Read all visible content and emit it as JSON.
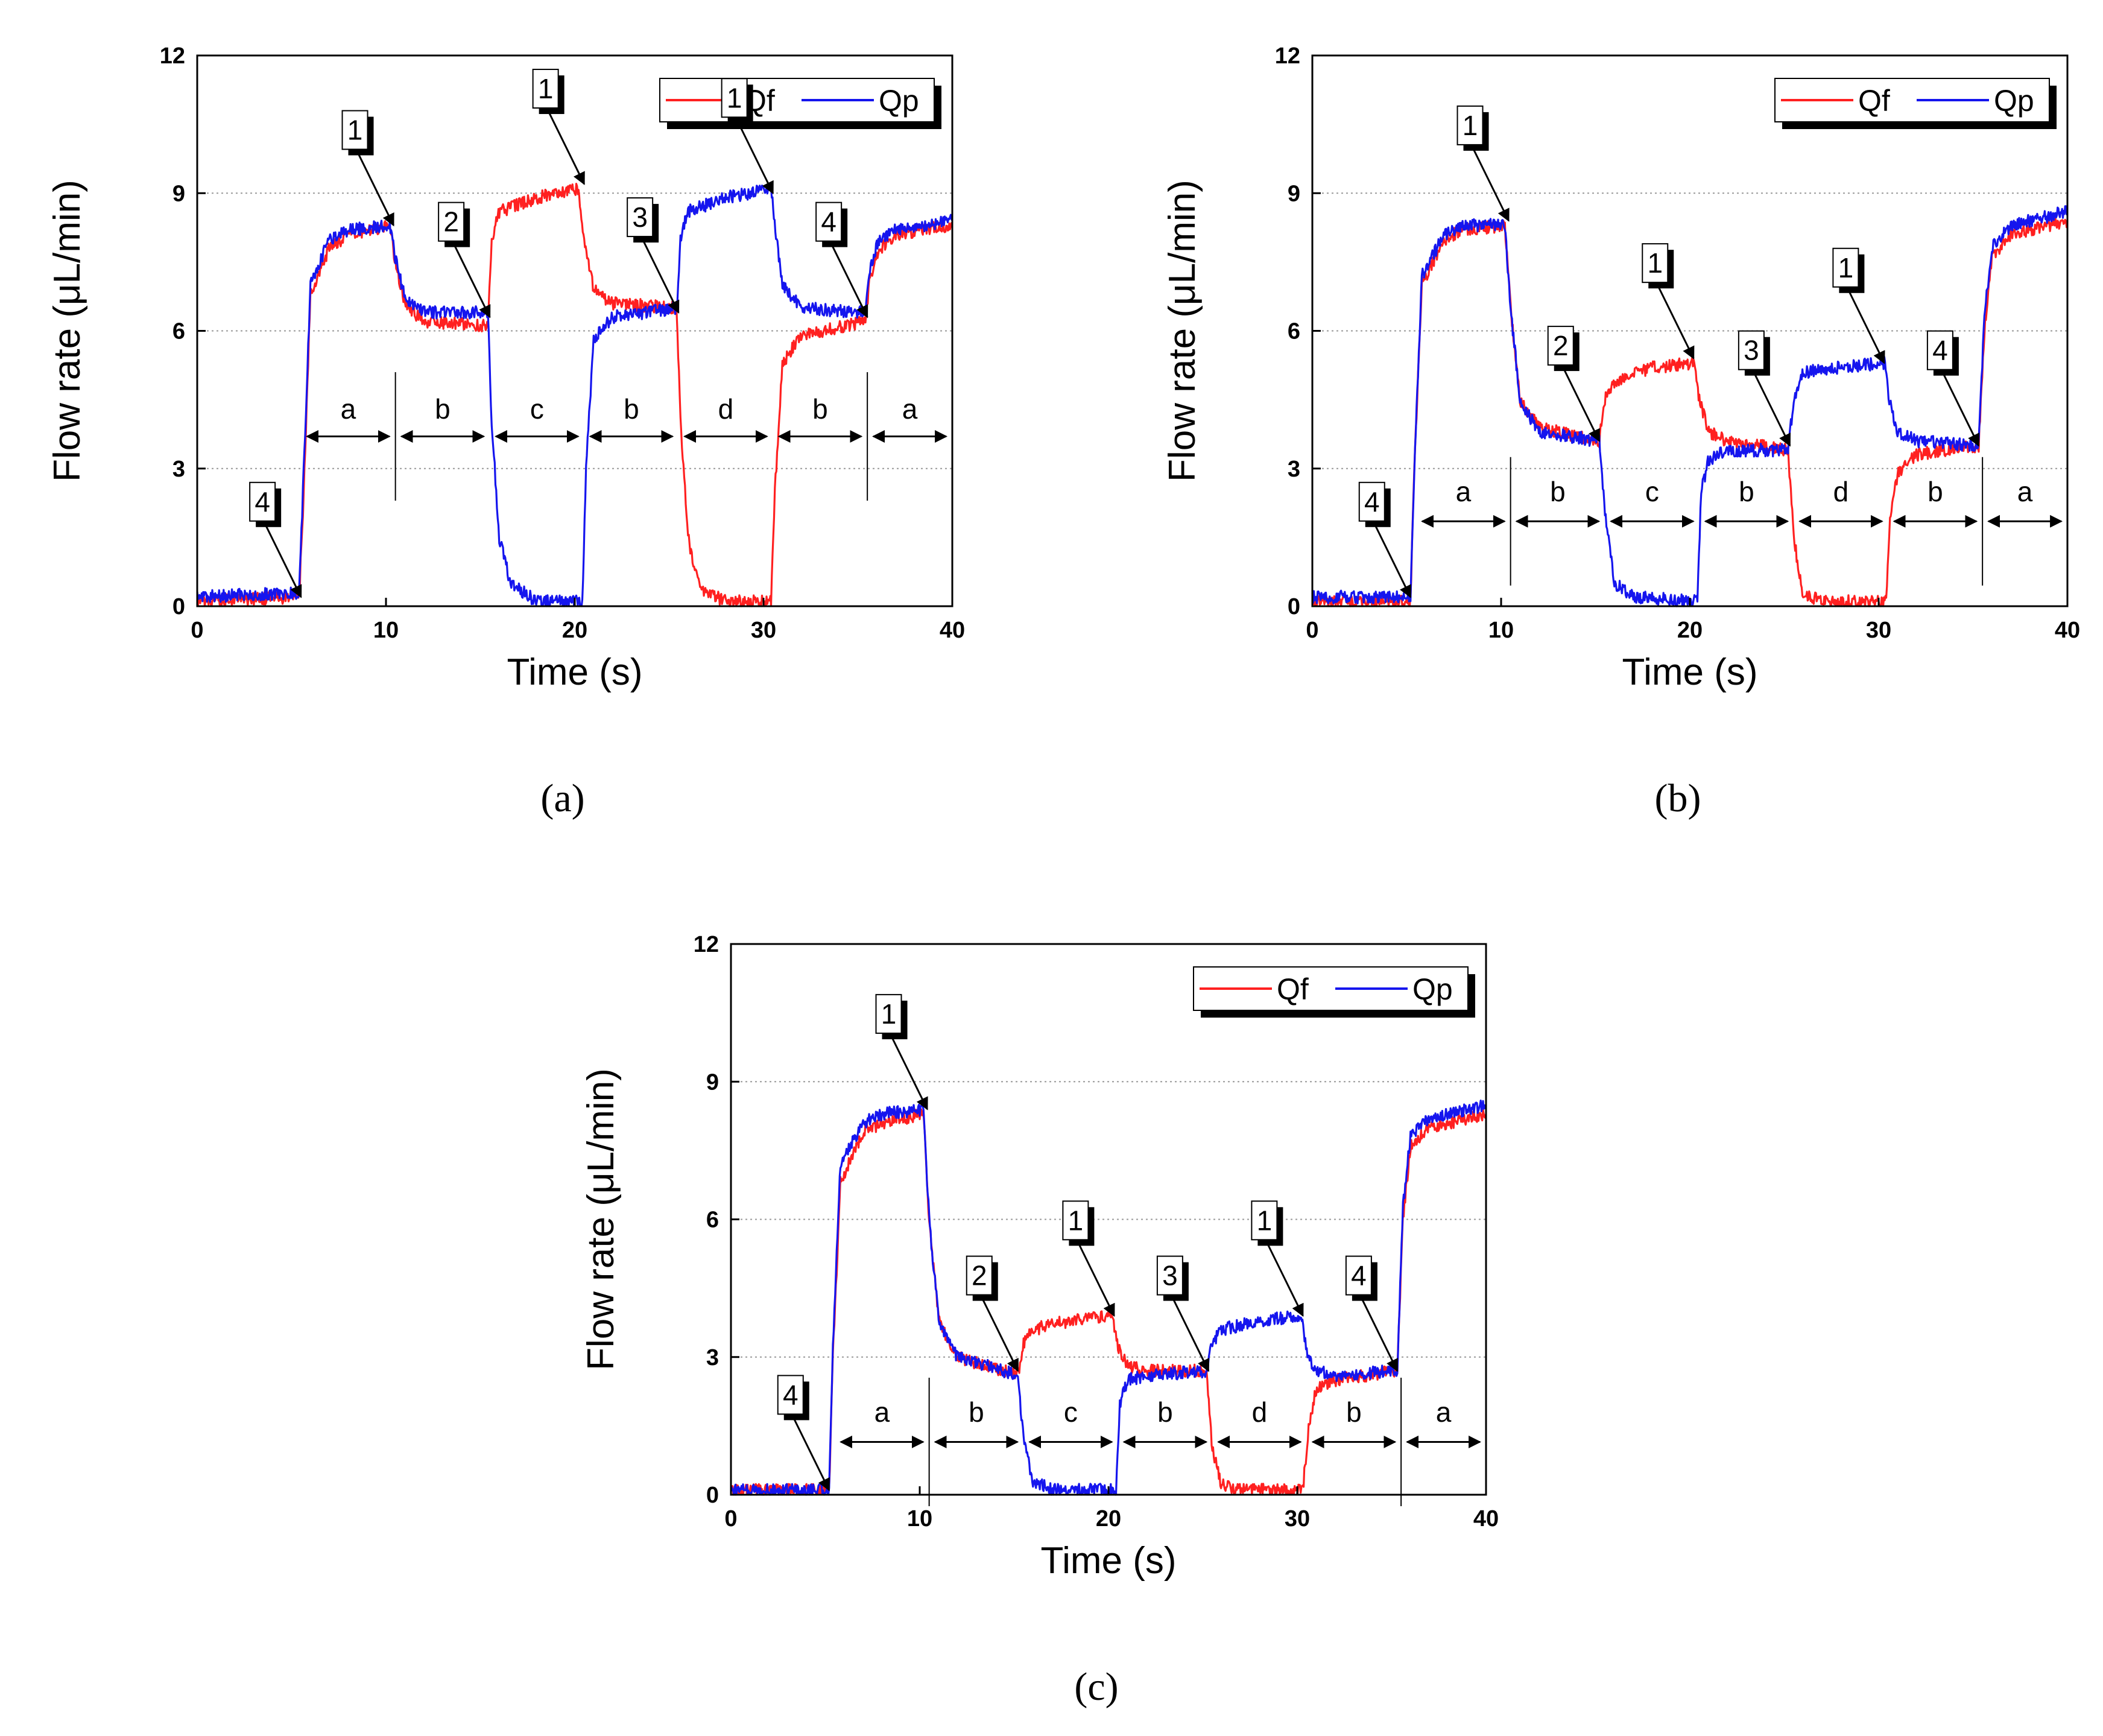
{
  "chart_data": [
    {
      "panel_label": "(a)",
      "type": "line",
      "xlabel": "Time (s)",
      "ylabel": "Flow rate (μL/min)",
      "xlim": [
        0,
        40
      ],
      "ylim": [
        0,
        12
      ],
      "xticks": [
        0,
        10,
        20,
        30,
        40
      ],
      "yticks": [
        0,
        3,
        6,
        9,
        12
      ],
      "grid": "horizontal dotted",
      "legend_position": "top-right",
      "series": [
        {
          "name": "Qf",
          "color": "#ff2020",
          "points": [
            [
              0,
              0.1
            ],
            [
              5.4,
              0.2
            ],
            [
              5.6,
              2
            ],
            [
              6,
              6.8
            ],
            [
              7,
              7.8
            ],
            [
              8,
              8.1
            ],
            [
              10.2,
              8.3
            ],
            [
              10.5,
              7.5
            ],
            [
              11,
              6.6
            ],
            [
              12,
              6.2
            ],
            [
              15.4,
              6.1
            ],
            [
              15.6,
              8
            ],
            [
              16,
              8.6
            ],
            [
              18,
              8.9
            ],
            [
              20.2,
              9.1
            ],
            [
              20.5,
              8
            ],
            [
              21,
              6.9
            ],
            [
              22,
              6.6
            ],
            [
              25.4,
              6.5
            ],
            [
              25.6,
              4
            ],
            [
              26,
              1.5
            ],
            [
              26.6,
              0.4
            ],
            [
              28,
              0.1
            ],
            [
              30.4,
              0.1
            ],
            [
              30.6,
              2.5
            ],
            [
              31,
              5.3
            ],
            [
              32,
              5.9
            ],
            [
              35.4,
              6.2
            ],
            [
              35.6,
              7
            ],
            [
              36,
              7.7
            ],
            [
              37,
              8.1
            ],
            [
              40,
              8.3
            ]
          ]
        },
        {
          "name": "Qp",
          "color": "#1515ee",
          "points": [
            [
              0,
              0.2
            ],
            [
              5.4,
              0.3
            ],
            [
              5.6,
              2.5
            ],
            [
              6,
              7
            ],
            [
              7,
              8
            ],
            [
              8,
              8.2
            ],
            [
              10.2,
              8.3
            ],
            [
              10.5,
              7.6
            ],
            [
              11,
              6.7
            ],
            [
              12,
              6.4
            ],
            [
              15.4,
              6.4
            ],
            [
              15.6,
              4
            ],
            [
              16,
              1.5
            ],
            [
              16.6,
              0.5
            ],
            [
              18,
              0.1
            ],
            [
              20.4,
              0.1
            ],
            [
              20.6,
              3
            ],
            [
              21,
              5.8
            ],
            [
              22,
              6.3
            ],
            [
              25.4,
              6.5
            ],
            [
              25.6,
              8
            ],
            [
              26,
              8.6
            ],
            [
              28,
              8.9
            ],
            [
              30.4,
              9.1
            ],
            [
              30.7,
              8
            ],
            [
              31,
              7
            ],
            [
              32,
              6.5
            ],
            [
              35.4,
              6.4
            ],
            [
              35.6,
              7.2
            ],
            [
              36,
              7.9
            ],
            [
              37,
              8.2
            ],
            [
              40,
              8.4
            ]
          ]
        }
      ],
      "callouts": [
        {
          "label": "1",
          "x": 10.4,
          "y": 8.3
        },
        {
          "label": "2",
          "x": 15.5,
          "y": 6.3
        },
        {
          "label": "1",
          "x": 20.5,
          "y": 9.2
        },
        {
          "label": "3",
          "x": 25.5,
          "y": 6.4
        },
        {
          "label": "1",
          "x": 30.5,
          "y": 9.0
        },
        {
          "label": "4",
          "x": 35.5,
          "y": 6.3
        },
        {
          "label": "4",
          "x": 5.5,
          "y": 0.2
        }
      ],
      "phases": [
        {
          "label": "a",
          "x0": 5.5,
          "x1": 10.5
        },
        {
          "label": "b",
          "x0": 10.5,
          "x1": 15.5
        },
        {
          "label": "c",
          "x0": 15.5,
          "x1": 20.5
        },
        {
          "label": "b",
          "x0": 20.5,
          "x1": 25.5
        },
        {
          "label": "d",
          "x0": 25.5,
          "x1": 30.5
        },
        {
          "label": "b",
          "x0": 30.5,
          "x1": 35.5
        },
        {
          "label": "a",
          "x0": 35.5,
          "x1": 40
        }
      ],
      "phase_dividers": [
        10.5,
        35.5
      ],
      "phase_arrow_y": 3.7,
      "phase_label_y": 4.3
    },
    {
      "panel_label": "(b)",
      "type": "line",
      "xlabel": "Time (s)",
      "ylabel": "Flow rate (μL/min)",
      "xlim": [
        0,
        40
      ],
      "ylim": [
        0,
        12
      ],
      "xticks": [
        0,
        10,
        20,
        30,
        40
      ],
      "yticks": [
        0,
        3,
        6,
        9,
        12
      ],
      "grid": "horizontal dotted",
      "legend_position": "top-right",
      "series": [
        {
          "name": "Qf",
          "color": "#ff2020",
          "points": [
            [
              0,
              0.1
            ],
            [
              5.2,
              0.1
            ],
            [
              5.4,
              3
            ],
            [
              5.8,
              7
            ],
            [
              7,
              8
            ],
            [
              8,
              8.2
            ],
            [
              10.2,
              8.3
            ],
            [
              10.5,
              6.5
            ],
            [
              11,
              4.5
            ],
            [
              12,
              3.9
            ],
            [
              15.2,
              3.6
            ],
            [
              15.5,
              4.5
            ],
            [
              16,
              4.9
            ],
            [
              18,
              5.2
            ],
            [
              20.2,
              5.3
            ],
            [
              20.5,
              4.5
            ],
            [
              21,
              3.8
            ],
            [
              22,
              3.6
            ],
            [
              25.2,
              3.4
            ],
            [
              25.5,
              1.5
            ],
            [
              26,
              0.2
            ],
            [
              28,
              0.1
            ],
            [
              30.4,
              0.1
            ],
            [
              30.6,
              1.8
            ],
            [
              31,
              2.9
            ],
            [
              32,
              3.3
            ],
            [
              35.3,
              3.5
            ],
            [
              35.6,
              6
            ],
            [
              36,
              7.6
            ],
            [
              37,
              8.1
            ],
            [
              40,
              8.4
            ]
          ]
        },
        {
          "name": "Qp",
          "color": "#1515ee",
          "points": [
            [
              0,
              0.2
            ],
            [
              5.2,
              0.2
            ],
            [
              5.4,
              3
            ],
            [
              5.8,
              7.2
            ],
            [
              7,
              8.1
            ],
            [
              8,
              8.3
            ],
            [
              10.2,
              8.3
            ],
            [
              10.5,
              6.5
            ],
            [
              11,
              4.5
            ],
            [
              12,
              3.8
            ],
            [
              15.2,
              3.6
            ],
            [
              15.5,
              2
            ],
            [
              16,
              0.5
            ],
            [
              17,
              0.2
            ],
            [
              20.4,
              0.1
            ],
            [
              20.6,
              2.5
            ],
            [
              21,
              3.2
            ],
            [
              22,
              3.4
            ],
            [
              25.2,
              3.4
            ],
            [
              25.5,
              4.5
            ],
            [
              26,
              5.1
            ],
            [
              28,
              5.2
            ],
            [
              30.3,
              5.3
            ],
            [
              30.6,
              4.4
            ],
            [
              31,
              3.8
            ],
            [
              32,
              3.6
            ],
            [
              35.3,
              3.5
            ],
            [
              35.6,
              6.3
            ],
            [
              36,
              7.8
            ],
            [
              37,
              8.3
            ],
            [
              40,
              8.6
            ]
          ]
        }
      ],
      "callouts": [
        {
          "label": "1",
          "x": 10.4,
          "y": 8.4
        },
        {
          "label": "2",
          "x": 15.2,
          "y": 3.6
        },
        {
          "label": "1",
          "x": 20.2,
          "y": 5.4
        },
        {
          "label": "3",
          "x": 25.3,
          "y": 3.5
        },
        {
          "label": "1",
          "x": 30.3,
          "y": 5.3
        },
        {
          "label": "4",
          "x": 35.3,
          "y": 3.5
        },
        {
          "label": "4",
          "x": 5.2,
          "y": 0.2
        }
      ],
      "phases": [
        {
          "label": "a",
          "x0": 5.5,
          "x1": 10.5
        },
        {
          "label": "b",
          "x0": 10.5,
          "x1": 15.5
        },
        {
          "label": "c",
          "x0": 15.5,
          "x1": 20.5
        },
        {
          "label": "b",
          "x0": 20.5,
          "x1": 25.5
        },
        {
          "label": "d",
          "x0": 25.5,
          "x1": 30.5
        },
        {
          "label": "b",
          "x0": 30.5,
          "x1": 35.5
        },
        {
          "label": "a",
          "x0": 35.5,
          "x1": 40
        }
      ],
      "phase_dividers": [
        10.5,
        35.5
      ],
      "phase_arrow_y": 1.85,
      "phase_label_y": 2.5
    },
    {
      "panel_label": "(c)",
      "type": "line",
      "xlabel": "Time (s)",
      "ylabel": "Flow rate (μL/min)",
      "xlim": [
        0,
        40
      ],
      "ylim": [
        0,
        12
      ],
      "xticks": [
        0,
        10,
        20,
        30,
        40
      ],
      "yticks": [
        0,
        3,
        6,
        9,
        12
      ],
      "grid": "horizontal dotted",
      "legend_position": "top-right",
      "series": [
        {
          "name": "Qf",
          "color": "#ff2020",
          "points": [
            [
              0,
              0.1
            ],
            [
              5.2,
              0.1
            ],
            [
              5.4,
              3
            ],
            [
              5.8,
              6.8
            ],
            [
              7,
              7.9
            ],
            [
              8,
              8.1
            ],
            [
              10.2,
              8.3
            ],
            [
              10.5,
              6
            ],
            [
              11,
              3.8
            ],
            [
              12,
              3
            ],
            [
              15.2,
              2.6
            ],
            [
              15.5,
              3.3
            ],
            [
              16,
              3.6
            ],
            [
              18,
              3.8
            ],
            [
              20.2,
              3.9
            ],
            [
              20.5,
              3.2
            ],
            [
              21,
              2.8
            ],
            [
              22,
              2.7
            ],
            [
              25.2,
              2.7
            ],
            [
              25.5,
              1
            ],
            [
              26,
              0.2
            ],
            [
              28,
              0.1
            ],
            [
              30.3,
              0.1
            ],
            [
              30.6,
              1.5
            ],
            [
              31,
              2.3
            ],
            [
              32,
              2.5
            ],
            [
              35.3,
              2.7
            ],
            [
              35.6,
              6
            ],
            [
              36,
              7.6
            ],
            [
              37,
              8.0
            ],
            [
              40,
              8.3
            ]
          ]
        },
        {
          "name": "Qp",
          "color": "#1515ee",
          "points": [
            [
              0,
              0.1
            ],
            [
              5.2,
              0.1
            ],
            [
              5.4,
              3.2
            ],
            [
              5.8,
              7.2
            ],
            [
              7,
              8.1
            ],
            [
              8,
              8.3
            ],
            [
              10.2,
              8.4
            ],
            [
              10.5,
              6
            ],
            [
              11,
              3.8
            ],
            [
              12,
              3
            ],
            [
              15.2,
              2.6
            ],
            [
              15.5,
              1.2
            ],
            [
              16,
              0.3
            ],
            [
              17,
              0.1
            ],
            [
              20.4,
              0.1
            ],
            [
              20.6,
              2
            ],
            [
              21,
              2.5
            ],
            [
              22,
              2.6
            ],
            [
              25.2,
              2.7
            ],
            [
              25.5,
              3.3
            ],
            [
              26,
              3.6
            ],
            [
              28,
              3.8
            ],
            [
              30.2,
              3.9
            ],
            [
              30.5,
              3.1
            ],
            [
              31,
              2.7
            ],
            [
              32,
              2.6
            ],
            [
              35.3,
              2.7
            ],
            [
              35.6,
              6.3
            ],
            [
              36,
              7.8
            ],
            [
              37,
              8.2
            ],
            [
              40,
              8.5
            ]
          ]
        }
      ],
      "callouts": [
        {
          "label": "1",
          "x": 10.4,
          "y": 8.4
        },
        {
          "label": "2",
          "x": 15.2,
          "y": 2.7
        },
        {
          "label": "1",
          "x": 20.3,
          "y": 3.9
        },
        {
          "label": "3",
          "x": 25.3,
          "y": 2.7
        },
        {
          "label": "1",
          "x": 30.3,
          "y": 3.9
        },
        {
          "label": "4",
          "x": 35.3,
          "y": 2.7
        },
        {
          "label": "4",
          "x": 5.2,
          "y": 0.1
        }
      ],
      "phases": [
        {
          "label": "a",
          "x0": 5.5,
          "x1": 10.5
        },
        {
          "label": "b",
          "x0": 10.5,
          "x1": 15.5
        },
        {
          "label": "c",
          "x0": 15.5,
          "x1": 20.5
        },
        {
          "label": "b",
          "x0": 20.5,
          "x1": 25.5
        },
        {
          "label": "d",
          "x0": 25.5,
          "x1": 30.5
        },
        {
          "label": "b",
          "x0": 30.5,
          "x1": 35.5
        },
        {
          "label": "a",
          "x0": 35.5,
          "x1": 40
        }
      ],
      "phase_dividers": [
        10.5,
        35.5
      ],
      "phase_arrow_y": 1.15,
      "phase_label_y": 1.8
    }
  ]
}
